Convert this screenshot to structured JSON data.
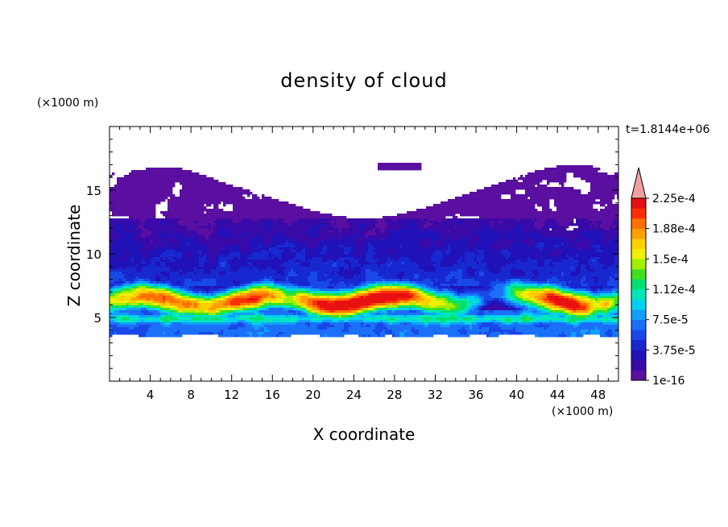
{
  "chart_data": {
    "type": "heatmap",
    "title": "density of cloud",
    "xlabel": "X coordinate",
    "ylabel": "Z coordinate",
    "x_unit": "(×1000 m)",
    "y_unit": "(×1000 m)",
    "time_label": "t=1.8144e+06",
    "xlim": [
      0,
      50
    ],
    "ylim": [
      0,
      20
    ],
    "x_ticks": [
      4,
      8,
      12,
      16,
      20,
      24,
      28,
      32,
      36,
      40,
      44,
      48
    ],
    "y_ticks": [
      5,
      10,
      15
    ],
    "colorbar": {
      "levels": [
        "1e-16",
        "3.75e-5",
        "7.5e-5",
        "1.12e-4",
        "1.5e-4",
        "1.88e-4",
        "2.25e-4"
      ],
      "colors": [
        "#5a0fa0",
        "#3a0aa8",
        "#2012b8",
        "#1828d0",
        "#1848e8",
        "#1a70f8",
        "#10a0ff",
        "#00d0f0",
        "#00e8b8",
        "#00e070",
        "#40e020",
        "#a0f000",
        "#f0f000",
        "#ffd000",
        "#ffa000",
        "#ff7000",
        "#ff3000",
        "#e81010"
      ],
      "extend_color": "#f4a0a0"
    },
    "cloud_layers": [
      {
        "z_range": [
          3.5,
          4.8
        ],
        "level": "1e-16 to 3.75e-5"
      },
      {
        "z_range": [
          4.8,
          5.5
        ],
        "level": "7.5e-5 to 1.12e-4"
      },
      {
        "z_range": [
          5.5,
          7.5
        ],
        "level": "1.12e-4 to 2.25e-4 (core)"
      },
      {
        "z_range": [
          7.5,
          12.5
        ],
        "level": "1e-16 to 7.5e-5"
      },
      {
        "z_range": [
          12.5,
          17
        ],
        "level": "1e-16 (sparse, with gaps)"
      }
    ],
    "core_maxima_x": [
      6,
      14,
      22,
      28,
      44
    ]
  }
}
